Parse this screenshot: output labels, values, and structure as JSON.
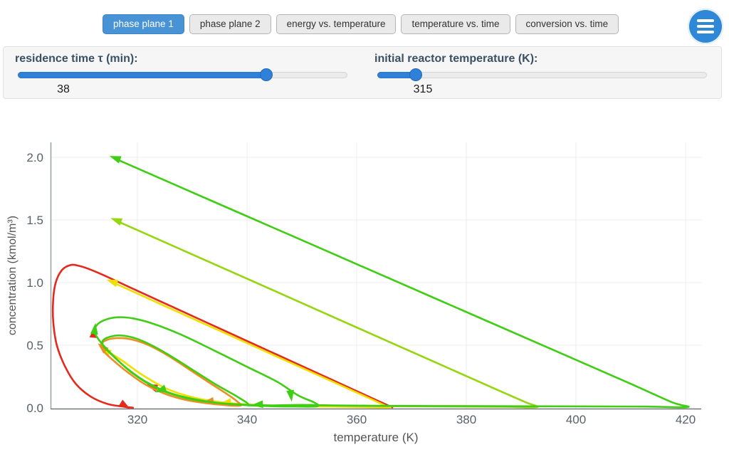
{
  "tabs": [
    {
      "label": "phase plane 1",
      "active": true
    },
    {
      "label": "phase plane 2",
      "active": false
    },
    {
      "label": "energy vs. temperature",
      "active": false
    },
    {
      "label": "temperature vs. time",
      "active": false
    },
    {
      "label": "conversion vs. time",
      "active": false
    }
  ],
  "menu": {
    "icon": "hamburger-icon",
    "color": "#2f87d8"
  },
  "controls": {
    "residence": {
      "label": "residence time τ (min):",
      "value": "38",
      "fraction": 0.755
    },
    "temperature": {
      "label": "initial reactor temperature (K):",
      "value": "315",
      "fraction": 0.115
    }
  },
  "chart_data": {
    "type": "line",
    "title": "",
    "xlabel": "temperature (K)",
    "ylabel": "concentration (kmol/m³)",
    "xlim": [
      304,
      423
    ],
    "ylim": [
      0,
      2.12
    ],
    "grid": true,
    "legend": "none",
    "xticks": [
      {
        "v": 320,
        "label": "320"
      },
      {
        "v": 340,
        "label": "340"
      },
      {
        "v": 360,
        "label": "360"
      },
      {
        "v": 380,
        "label": "380"
      },
      {
        "v": 400,
        "label": "400"
      },
      {
        "v": 420,
        "label": "420"
      }
    ],
    "yticks": [
      {
        "v": 0,
        "label": "0.0"
      },
      {
        "v": 0.5,
        "label": "0.5"
      },
      {
        "v": 1.0,
        "label": "1.0"
      },
      {
        "v": 1.5,
        "label": "1.5"
      },
      {
        "v": 2.0,
        "label": "2.0"
      }
    ],
    "series": [
      {
        "name": "trajectory-red",
        "color": "#e42a1d",
        "points": [
          [
            366.5,
            0.004
          ],
          [
            356,
            0.214
          ],
          [
            346,
            0.414
          ],
          [
            336,
            0.614
          ],
          [
            326,
            0.814
          ],
          [
            318,
            0.975
          ],
          [
            314.5,
            1.046
          ],
          [
            311.5,
            1.103
          ],
          [
            309.3,
            1.134
          ],
          [
            307.9,
            1.141
          ],
          [
            306.3,
            1.103
          ],
          [
            305.1,
            1.0
          ],
          [
            304.62,
            0.85
          ],
          [
            304.66,
            0.68
          ],
          [
            305.3,
            0.5
          ],
          [
            306.8,
            0.33
          ],
          [
            308.8,
            0.19
          ],
          [
            311.5,
            0.09
          ],
          [
            314.5,
            0.032
          ],
          [
            317.3,
            0.011
          ],
          [
            319.2,
            0.001
          ]
        ],
        "arrows": [
          [
            312.05,
            0.6,
            -85
          ],
          [
            322.7,
            0.17,
            200
          ],
          [
            317.7,
            0.018,
            32
          ]
        ]
      },
      {
        "name": "trajectory-yellow",
        "color": "#efe000",
        "points": [
          [
            315.6,
            1.0
          ],
          [
            325,
            0.813
          ],
          [
            335,
            0.616
          ],
          [
            345,
            0.418
          ],
          [
            355,
            0.221
          ],
          [
            362,
            0.083
          ],
          [
            365.2,
            0.018
          ],
          [
            365.9,
            0.004
          ],
          [
            361,
            0.007
          ],
          [
            353,
            0.011
          ],
          [
            346,
            0.016
          ],
          [
            340,
            0.027
          ],
          [
            334.8,
            0.048
          ],
          [
            330,
            0.085
          ],
          [
            325.5,
            0.15
          ],
          [
            321,
            0.26
          ],
          [
            317.3,
            0.375
          ],
          [
            314.8,
            0.445
          ],
          [
            314.05,
            0.462
          ]
        ],
        "arrows": [
          [
            315.45,
            1.007,
            200
          ],
          [
            336.2,
            0.042,
            173
          ],
          [
            314.2,
            0.455,
            213
          ]
        ]
      },
      {
        "name": "trajectory-orange",
        "color": "#ed8e24",
        "points": [
          [
            313.9,
            0.455
          ],
          [
            313.3,
            0.5
          ],
          [
            314.2,
            0.538
          ],
          [
            316.2,
            0.557
          ],
          [
            318.8,
            0.548
          ],
          [
            321.8,
            0.505
          ],
          [
            325.3,
            0.425
          ],
          [
            329,
            0.32
          ],
          [
            332.8,
            0.21
          ],
          [
            336.2,
            0.115
          ],
          [
            338.3,
            0.048
          ],
          [
            338.8,
            0.018
          ],
          [
            336,
            0.022
          ],
          [
            332.5,
            0.038
          ],
          [
            329,
            0.062
          ],
          [
            325.3,
            0.108
          ],
          [
            321.5,
            0.185
          ],
          [
            318.2,
            0.285
          ],
          [
            315.7,
            0.375
          ],
          [
            314.2,
            0.435
          ],
          [
            313.88,
            0.456
          ]
        ],
        "arrows": [
          [
            333.0,
            0.05,
            172
          ],
          [
            313.62,
            0.482,
            222
          ]
        ]
      },
      {
        "name": "trajectory-yellowgreen",
        "color": "#95d60f",
        "points": [
          [
            316.35,
            1.49
          ],
          [
            330,
            1.225
          ],
          [
            345,
            0.934
          ],
          [
            360,
            0.642
          ],
          [
            375,
            0.351
          ],
          [
            385,
            0.157
          ],
          [
            390.8,
            0.045
          ],
          [
            392.9,
            0.006
          ],
          [
            387,
            0.009
          ],
          [
            377,
            0.011
          ],
          [
            367,
            0.013
          ],
          [
            359,
            0.016
          ],
          [
            353.5,
            0.02
          ],
          [
            351.5,
            0.024
          ]
        ],
        "arrows": [
          [
            316.2,
            1.497,
            200
          ]
        ]
      },
      {
        "name": "trajectory-green",
        "color": "#3fce14",
        "points": [
          [
            316.15,
            1.985
          ],
          [
            335,
            1.625
          ],
          [
            355,
            1.243
          ],
          [
            375,
            0.861
          ],
          [
            395,
            0.479
          ],
          [
            410,
            0.192
          ],
          [
            417.5,
            0.045
          ],
          [
            420.4,
            0.006
          ],
          [
            413,
            0.01
          ],
          [
            402,
            0.012
          ],
          [
            388,
            0.013
          ],
          [
            374,
            0.015
          ],
          [
            363,
            0.017
          ],
          [
            355.5,
            0.02
          ],
          [
            350,
            0.024
          ],
          [
            344.5,
            0.02
          ],
          [
            340,
            0.024
          ],
          [
            334,
            0.042
          ],
          [
            328.5,
            0.082
          ],
          [
            323.5,
            0.158
          ],
          [
            319,
            0.28
          ],
          [
            315.5,
            0.42
          ],
          [
            313.2,
            0.53
          ],
          [
            312.25,
            0.6
          ],
          [
            312.5,
            0.655
          ],
          [
            313.8,
            0.697
          ],
          [
            316.2,
            0.723
          ],
          [
            319.2,
            0.714
          ],
          [
            323,
            0.67
          ],
          [
            328,
            0.584
          ],
          [
            334,
            0.458
          ],
          [
            340,
            0.328
          ],
          [
            345.5,
            0.208
          ],
          [
            349.3,
            0.1
          ],
          [
            352.3,
            0.042
          ],
          [
            352.7,
            0.012
          ],
          [
            348.5,
            0.011
          ],
          [
            343.8,
            0.014
          ],
          [
            339.5,
            0.022
          ],
          [
            335,
            0.038
          ],
          [
            330.5,
            0.068
          ],
          [
            326,
            0.118
          ],
          [
            321.8,
            0.202
          ],
          [
            318.1,
            0.315
          ],
          [
            315.3,
            0.425
          ],
          [
            313.85,
            0.492
          ],
          [
            313.7,
            0.537
          ],
          [
            314.9,
            0.566
          ],
          [
            317,
            0.578
          ],
          [
            319.8,
            0.553
          ],
          [
            322.8,
            0.495
          ],
          [
            326.3,
            0.408
          ],
          [
            330.2,
            0.3
          ],
          [
            334.2,
            0.19
          ],
          [
            337.8,
            0.1
          ],
          [
            340.0,
            0.04
          ],
          [
            340.3,
            0.018
          ]
        ],
        "arrows": [
          [
            316.0,
            1.993,
            200
          ],
          [
            312.22,
            0.628,
            -83
          ],
          [
            324.3,
            0.142,
            160
          ],
          [
            342.0,
            0.026,
            176
          ],
          [
            348.0,
            0.1,
            82
          ]
        ]
      }
    ]
  }
}
